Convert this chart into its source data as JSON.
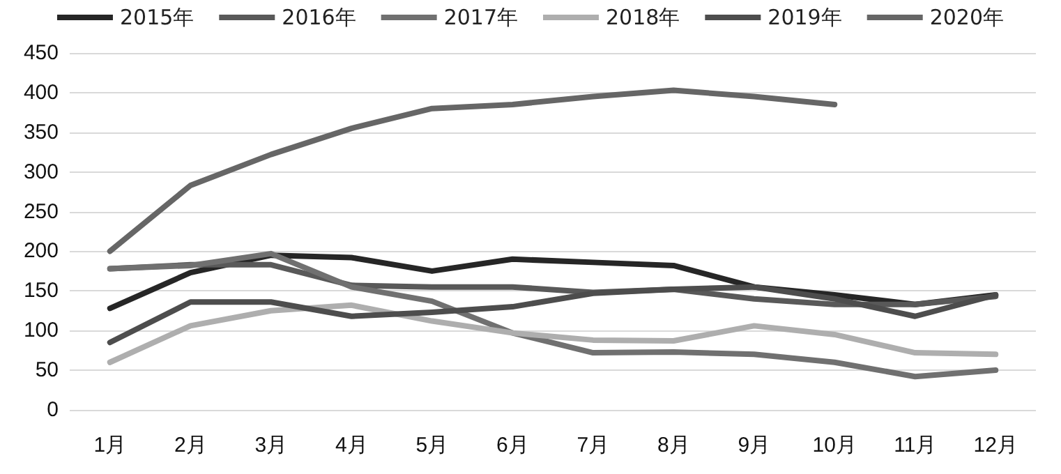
{
  "chart_data": {
    "type": "line",
    "categories": [
      "1月",
      "2月",
      "3月",
      "4月",
      "5月",
      "6月",
      "7月",
      "8月",
      "9月",
      "10月",
      "11月",
      "12月"
    ],
    "series": [
      {
        "name": "2015年",
        "color": "#262626",
        "values": [
          128,
          173,
          195,
          192,
          175,
          190,
          186,
          182,
          155,
          145,
          133,
          145
        ]
      },
      {
        "name": "2016年",
        "color": "#595959",
        "values": [
          178,
          183,
          183,
          157,
          155,
          155,
          148,
          152,
          140,
          133,
          133,
          143
        ]
      },
      {
        "name": "2017年",
        "color": "#707070",
        "values": [
          178,
          182,
          197,
          155,
          137,
          97,
          72,
          73,
          70,
          60,
          42,
          50
        ]
      },
      {
        "name": "2018年",
        "color": "#aeaeae",
        "values": [
          60,
          106,
          125,
          132,
          112,
          97,
          88,
          87,
          106,
          95,
          72,
          70
        ]
      },
      {
        "name": "2019年",
        "color": "#4d4d4d",
        "values": [
          85,
          136,
          136,
          118,
          123,
          130,
          147,
          152,
          155,
          140,
          118,
          145
        ]
      },
      {
        "name": "2020年",
        "color": "#666666",
        "values": [
          200,
          283,
          322,
          355,
          380,
          385,
          395,
          403,
          395,
          385,
          null,
          null
        ]
      }
    ],
    "ylim": [
      0,
      450
    ],
    "yticks": [
      0,
      50,
      100,
      150,
      200,
      250,
      300,
      350,
      400,
      450
    ],
    "grid": "y",
    "legend": "top",
    "marker": "none",
    "line_style": "solid"
  }
}
